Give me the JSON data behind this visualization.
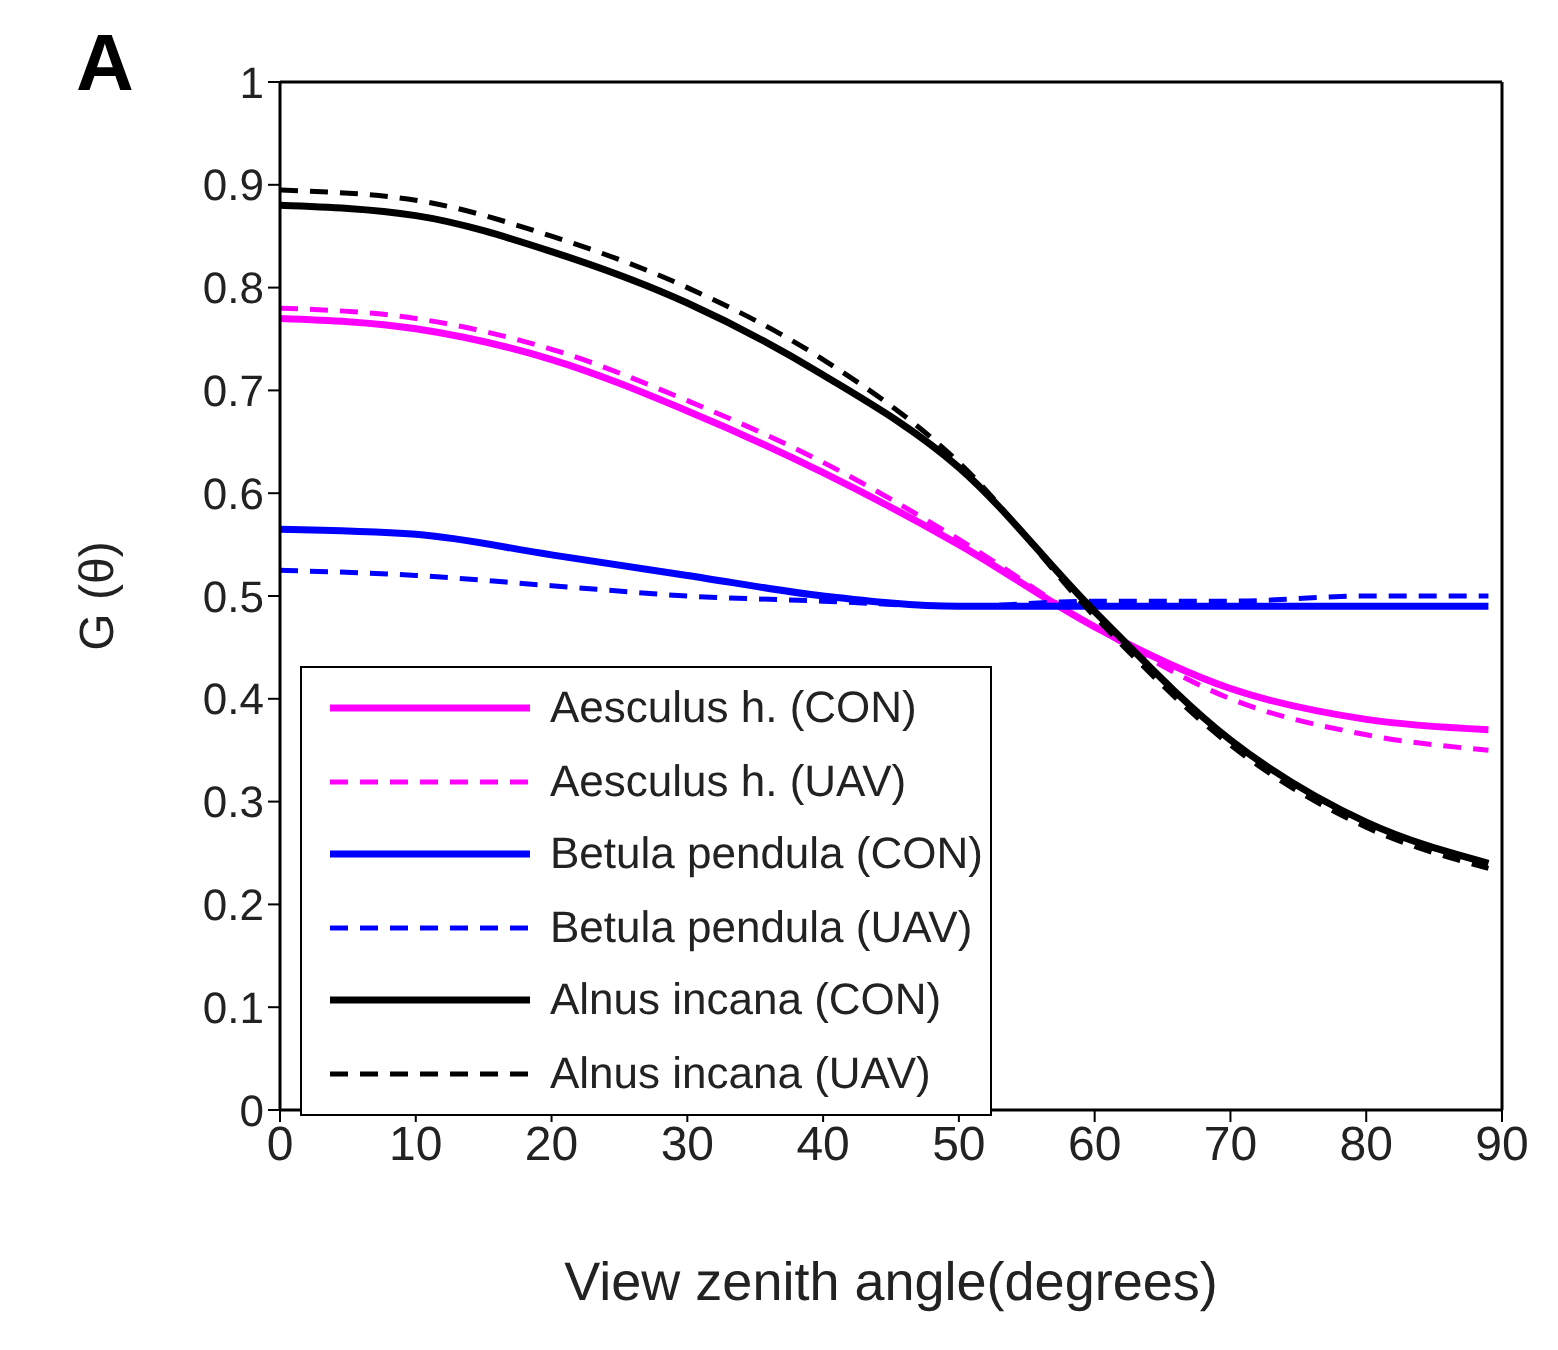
{
  "chart_data": {
    "type": "line",
    "title": "A",
    "xlabel": "View zenith angle(degrees)",
    "ylabel": "G (θ)",
    "x": [
      0,
      10,
      20,
      30,
      40,
      50,
      60,
      70,
      80,
      89
    ],
    "xlim": [
      0,
      90
    ],
    "xticks": [
      0,
      10,
      20,
      30,
      40,
      50,
      60,
      70,
      80,
      90
    ],
    "ylim": [
      0,
      1
    ],
    "yticks": [
      0,
      0.1,
      0.2,
      0.3,
      0.4,
      0.5,
      0.6,
      0.7,
      0.8,
      0.9,
      1
    ],
    "grid": false,
    "legend": "bottom left",
    "marker": "none",
    "series": [
      {
        "name": "Aesculus h. (CON)",
        "color": "#ff00ff",
        "line_style": "solid",
        "values": [
          0.77,
          0.76,
          0.73,
          0.68,
          0.62,
          0.55,
          0.47,
          0.41,
          0.38,
          0.37
        ]
      },
      {
        "name": "Aesculus h. (UAV)",
        "color": "#ff00ff",
        "line_style": "dashed",
        "values": [
          0.78,
          0.77,
          0.74,
          0.69,
          0.63,
          0.555,
          0.47,
          0.4,
          0.365,
          0.35
        ]
      },
      {
        "name": "Betula pendula (CON)",
        "color": "#0000ff",
        "line_style": "solid",
        "values": [
          0.565,
          0.56,
          0.54,
          0.52,
          0.5,
          0.49,
          0.49,
          0.49,
          0.49,
          0.49
        ]
      },
      {
        "name": "Betula pendula (UAV)",
        "color": "#0000ff",
        "line_style": "dashed",
        "values": [
          0.525,
          0.52,
          0.51,
          0.5,
          0.495,
          0.49,
          0.495,
          0.495,
          0.5,
          0.5
        ]
      },
      {
        "name": "Alnus incana (CON)",
        "color": "#000000",
        "line_style": "solid",
        "values": [
          0.88,
          0.87,
          0.835,
          0.785,
          0.715,
          0.625,
          0.485,
          0.36,
          0.28,
          0.24
        ]
      },
      {
        "name": "Alnus incana (UAV)",
        "color": "#000000",
        "line_style": "dashed",
        "values": [
          0.895,
          0.885,
          0.85,
          0.8,
          0.73,
          0.63,
          0.48,
          0.355,
          0.275,
          0.235
        ]
      }
    ]
  }
}
